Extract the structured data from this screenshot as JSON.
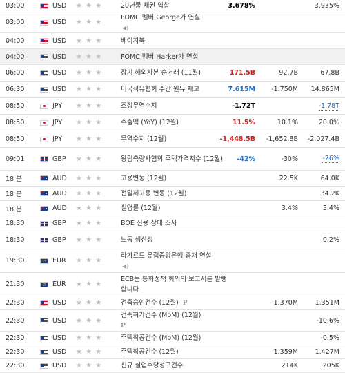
{
  "rows": [
    {
      "time": "03:00",
      "cur": "USD",
      "flag": "us",
      "stars": "★ ★ ★",
      "event": "20년물 채권 입찰",
      "actual": "3.678%",
      "actual_color": "black",
      "forecast": "",
      "previous": "3.935%",
      "previous_color": "",
      "h": 18,
      "shade": false,
      "sound": false,
      "p": false
    },
    {
      "time": "03:00",
      "cur": "USD",
      "flag": "us",
      "stars": "★ ★ ★",
      "event": "FOMC 멤버 George가 연설",
      "actual": "",
      "forecast": "",
      "previous": "",
      "h": 30,
      "shade": false,
      "sound": true,
      "p": false
    },
    {
      "time": "04:00",
      "cur": "USD",
      "flag": "us",
      "stars": "★ ★ ★",
      "event": "베이지북",
      "actual": "",
      "forecast": "",
      "previous": "",
      "h": 23,
      "shade": false,
      "sound": false,
      "p": false
    },
    {
      "time": "04:00",
      "cur": "USD",
      "flag": "us",
      "stars": "★ ★ ★",
      "event": "FOMC 멤버 Harker가 연설",
      "actual": "",
      "forecast": "",
      "previous": "",
      "h": 23,
      "shade": true,
      "sound": false,
      "p": false
    },
    {
      "time": "06:00",
      "cur": "USD",
      "flag": "us",
      "stars": "★ ★ ★",
      "event": "장기 해외자본 순거래 (11월)",
      "actual": "171.5B",
      "actual_color": "pos",
      "forecast": "92.7B",
      "previous": "67.8B",
      "previous_color": "",
      "h": 24,
      "shade": false,
      "sound": false,
      "p": false
    },
    {
      "time": "06:30",
      "cur": "USD",
      "flag": "us",
      "stars": "★ ★ ★",
      "event": "미국석유협회 주간 원유 재고",
      "actual": "7.615M",
      "actual_color": "blue",
      "forecast": "-1.750M",
      "previous": "14.865M",
      "previous_color": "",
      "h": 24,
      "shade": false,
      "sound": false,
      "p": false
    },
    {
      "time": "08:50",
      "cur": "JPY",
      "flag": "jp",
      "stars": "★ ★ ★",
      "event": "조정무역수지",
      "actual": "-1.72T",
      "actual_color": "black",
      "forecast": "",
      "previous": "-1.78T",
      "previous_color": "blue",
      "h": 24,
      "shade": false,
      "sound": false,
      "p": false
    },
    {
      "time": "08:50",
      "cur": "JPY",
      "flag": "jp",
      "stars": "★ ★ ★",
      "event": "수출액 (YoY) (12월)",
      "actual": "11.5%",
      "actual_color": "pos",
      "forecast": "10.1%",
      "previous": "20.0%",
      "previous_color": "",
      "h": 24,
      "shade": false,
      "sound": false,
      "p": false
    },
    {
      "time": "08:50",
      "cur": "JPY",
      "flag": "jp",
      "stars": "★ ★ ★",
      "event": "무역수지 (12월)",
      "actual": "-1,448.5B",
      "actual_color": "pos",
      "forecast": "-1,652.8B",
      "previous": "-2,027.4B",
      "previous_color": "",
      "h": 24,
      "shade": false,
      "sound": false,
      "p": false
    },
    {
      "time": "09:01",
      "cur": "GBP",
      "flag": "gb",
      "stars": "★ ★ ★",
      "event": "왕립측량사협회 주택가격지수 (12월)",
      "actual": "-42%",
      "actual_color": "blue",
      "forecast": "-30%",
      "previous": "-26%",
      "previous_color": "blue",
      "h": 33,
      "shade": false,
      "sound": false,
      "p": false
    },
    {
      "time": "18 분",
      "cur": "AUD",
      "flag": "au",
      "stars": "★ ★ ★",
      "event": "고용변동 (12월)",
      "actual": "",
      "forecast": "22.5K",
      "previous": "64.0K",
      "previous_color": "",
      "h": 23,
      "shade": false,
      "sound": false,
      "p": false
    },
    {
      "time": "18 분",
      "cur": "AUD",
      "flag": "au",
      "stars": "★ ★ ★",
      "event": "전일제고용 변동 (12월)",
      "actual": "",
      "forecast": "",
      "previous": "34.2K",
      "previous_color": "",
      "h": 21,
      "shade": false,
      "sound": false,
      "p": false
    },
    {
      "time": "18 분",
      "cur": "AUD",
      "flag": "au",
      "stars": "★ ★ ★",
      "event": "실업률 (12월)",
      "actual": "",
      "forecast": "3.4%",
      "previous": "3.4%",
      "previous_color": "",
      "h": 22,
      "shade": false,
      "sound": false,
      "p": false
    },
    {
      "time": "18:30",
      "cur": "GBP",
      "flag": "gb",
      "stars": "★ ★ ★",
      "event": "BOE 신용 상태 조사",
      "actual": "",
      "forecast": "",
      "previous": "",
      "h": 22,
      "shade": false,
      "sound": false,
      "p": false
    },
    {
      "time": "18:30",
      "cur": "GBP",
      "flag": "gb",
      "stars": "★ ★ ★",
      "event": "노동 생산성",
      "actual": "",
      "forecast": "",
      "previous": "0.2%",
      "previous_color": "",
      "h": 26,
      "shade": false,
      "sound": false,
      "p": false
    },
    {
      "time": "19:30",
      "cur": "EUR",
      "flag": "eu",
      "stars": "★ ★ ★",
      "event": "라가르드 유럽중앙은행 총재 연설",
      "actual": "",
      "forecast": "",
      "previous": "",
      "h": 34,
      "shade": false,
      "sound": true,
      "p": false
    },
    {
      "time": "21:30",
      "cur": "EUR",
      "flag": "eu",
      "stars": "★ ★ ★",
      "event": "ECB는 통화정책 회의의 보고서를 발행합니다",
      "actual": "",
      "forecast": "",
      "previous": "",
      "h": 34,
      "shade": false,
      "sound": false,
      "p": false
    },
    {
      "time": "22:30",
      "cur": "USD",
      "flag": "us",
      "stars": "★ ★ ★",
      "event": "건축승인건수 (12월)",
      "actual": "",
      "forecast": "1.370M",
      "previous": "1.351M",
      "previous_color": "",
      "h": 20,
      "shade": false,
      "sound": false,
      "p": true
    },
    {
      "time": "22:30",
      "cur": "USD",
      "flag": "us",
      "stars": "★ ★ ★",
      "event": "건축허가건수 (MoM) (12월)",
      "actual": "",
      "forecast": "",
      "previous": "-10.6%",
      "previous_color": "",
      "h": 31,
      "shade": false,
      "sound": false,
      "p": true,
      "p_newline": true
    },
    {
      "time": "22:30",
      "cur": "USD",
      "flag": "us",
      "stars": "★ ★ ★",
      "event": "주택착공건수 (MoM) (12월)",
      "actual": "",
      "forecast": "",
      "previous": "-0.5%",
      "previous_color": "",
      "h": 20,
      "shade": false,
      "sound": false,
      "p": false
    },
    {
      "time": "22:30",
      "cur": "USD",
      "flag": "us",
      "stars": "★ ★ ★",
      "event": "주택착공건수 (12월)",
      "actual": "",
      "forecast": "1.359M",
      "previous": "1.427M",
      "previous_color": "",
      "h": 20,
      "shade": false,
      "sound": false,
      "p": false
    },
    {
      "time": "22:30",
      "cur": "USD",
      "flag": "us",
      "stars": "★ ★ ★",
      "event": "신규 실업수당청구건수",
      "actual": "",
      "forecast": "214K",
      "previous": "205K",
      "previous_color": "",
      "h": 20,
      "shade": false,
      "sound": false,
      "p": false
    }
  ]
}
